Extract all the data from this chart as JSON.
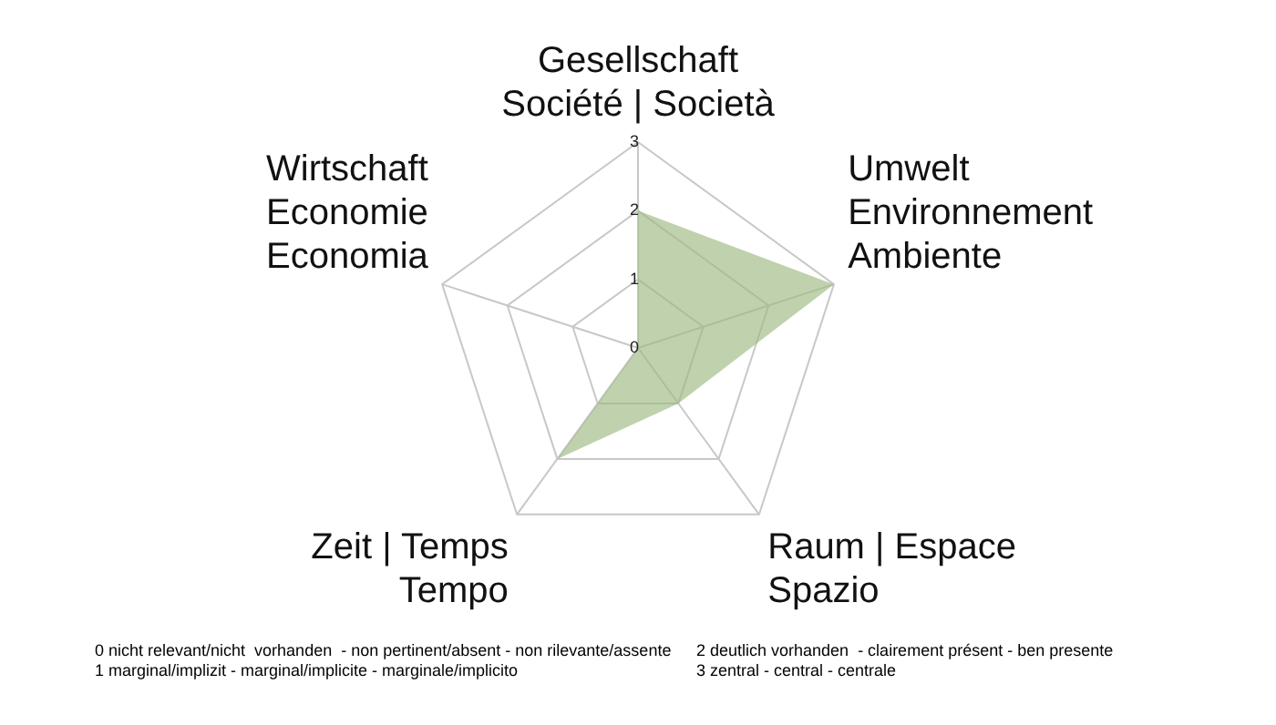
{
  "chart_data": {
    "type": "radar",
    "categories": [
      "Gesellschaft\nSociété | Società",
      "Umwelt\nEnvironnement\nAmbiente",
      "Raum | Espace\nSpazio",
      "Zeit | Temps\nTempo",
      "Wirtschaft\nEconomie\nEconomia"
    ],
    "series": [
      {
        "color": "#9db981",
        "values": [
          2,
          3,
          1,
          2,
          0
        ]
      }
    ],
    "ylim": [
      0,
      3
    ],
    "yticks": [
      0,
      1,
      2,
      3
    ],
    "grid": true,
    "legend": false,
    "annotations": [
      "0 nicht relevant/nicht  vorhanden  - non pertinent/absent - non rilevante/assente",
      "1 marginal/implizit - marginal/implicite - marginale/implicito",
      "2 deutlich vorhanden  - clairement présent - ben presente",
      "3 zentral - central - centrale"
    ]
  }
}
